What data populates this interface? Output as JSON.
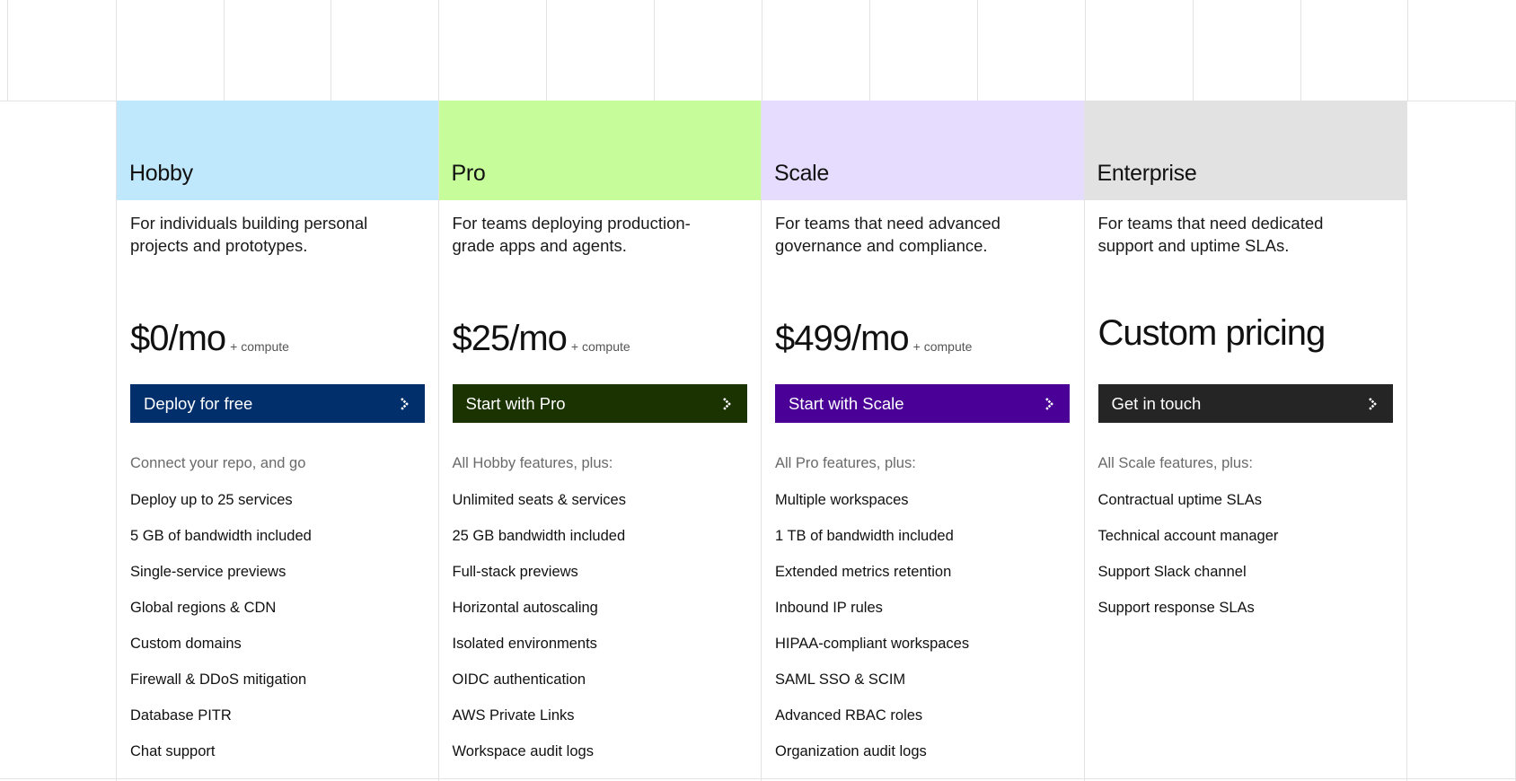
{
  "plans": [
    {
      "name": "Hobby",
      "header_color": "#c0e8fc",
      "description": "For individuals building personal projects and prototypes.",
      "price": "$0/mo",
      "price_note": "+ compute",
      "cta_label": "Deploy for free",
      "cta_color": "#002f6c",
      "features_heading": "Connect your repo, and go",
      "features": [
        "Deploy up to 25 services",
        "5 GB of bandwidth included",
        "Single-service previews",
        "Global regions & CDN",
        "Custom domains",
        "Firewall & DDoS mitigation",
        "Database PITR",
        "Chat support"
      ]
    },
    {
      "name": "Pro",
      "header_color": "#c6fd9a",
      "description": "For teams deploying production-grade apps and agents.",
      "price": "$25/mo",
      "price_note": "+ compute",
      "cta_label": "Start with Pro",
      "cta_color": "#1a3300",
      "features_heading": "All Hobby features, plus:",
      "features": [
        "Unlimited seats & services",
        "25 GB bandwidth included",
        "Full-stack previews",
        "Horizontal autoscaling",
        "Isolated environments",
        "OIDC authentication",
        "AWS Private Links",
        "Workspace audit logs"
      ]
    },
    {
      "name": "Scale",
      "header_color": "#e6dcfe",
      "description": "For teams that need advanced governance and compliance.",
      "price": "$499/mo",
      "price_note": "+ compute",
      "cta_label": "Start with Scale",
      "cta_color": "#4a0096",
      "features_heading": "All Pro features, plus:",
      "features": [
        "Multiple workspaces",
        "1 TB of bandwidth included",
        "Extended metrics retention",
        "Inbound IP rules",
        "HIPAA-compliant workspaces",
        "SAML SSO & SCIM",
        "Advanced RBAC roles",
        "Organization audit logs"
      ]
    },
    {
      "name": "Enterprise",
      "header_color": "#e2e2e2",
      "description": "For teams that need dedicated support and uptime SLAs.",
      "custom_price": "Custom pricing",
      "cta_label": "Get in touch",
      "cta_color": "#252525",
      "features_heading": "All Scale features, plus:",
      "features": [
        "Contractual uptime SLAs",
        "Technical account manager",
        "Support Slack channel",
        "Support response SLAs"
      ]
    }
  ],
  "icons": {
    "cta_arrow": "chevron-right-icon"
  }
}
